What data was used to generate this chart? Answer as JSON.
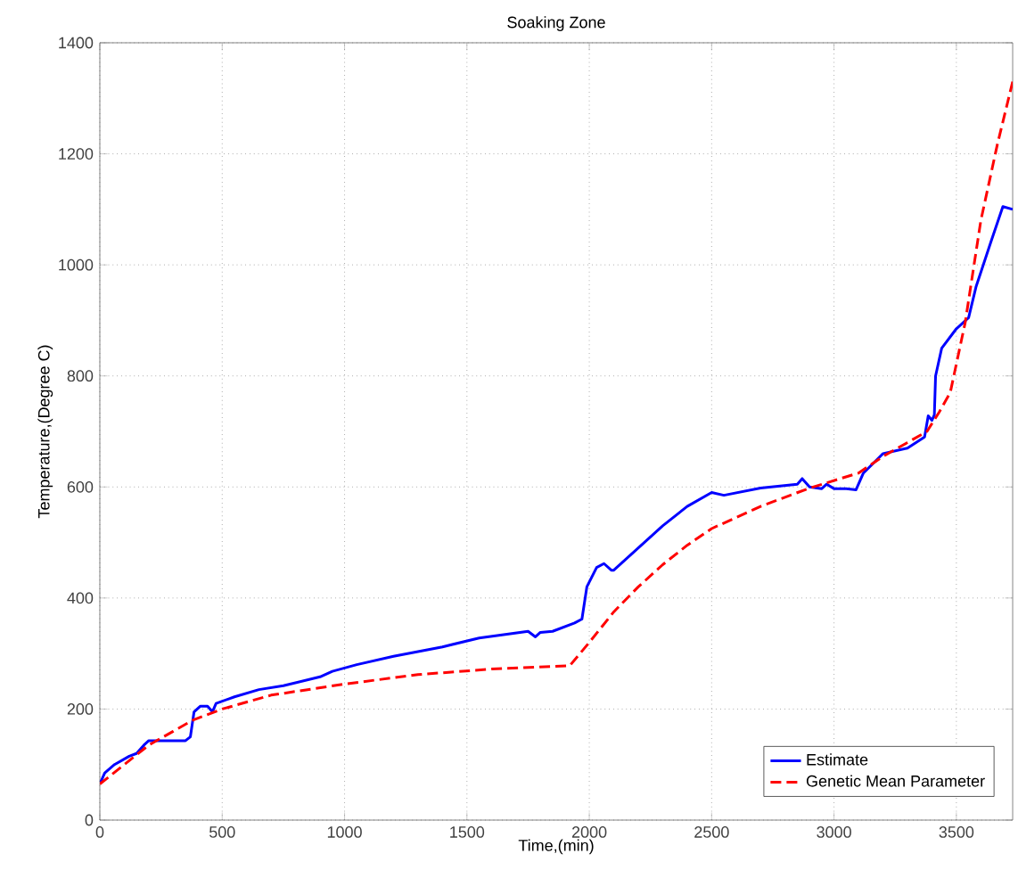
{
  "chart_data": {
    "type": "line",
    "title": "Soaking Zone",
    "xlabel": "Time,(min)",
    "ylabel": "Temperature,(Degree C)",
    "xlim": [
      0,
      3730
    ],
    "ylim": [
      0,
      1400
    ],
    "xticks": [
      0,
      500,
      1000,
      1500,
      2000,
      2500,
      3000,
      3500
    ],
    "yticks": [
      0,
      200,
      400,
      600,
      800,
      1000,
      1200,
      1400
    ],
    "grid": true,
    "legend": "bottom right",
    "series": [
      {
        "name": "Estimate",
        "color": "#0000ff",
        "line_style": "solid",
        "x": [
          0,
          20,
          60,
          120,
          150,
          180,
          200,
          250,
          300,
          350,
          370,
          385,
          410,
          440,
          460,
          475,
          550,
          650,
          750,
          900,
          950,
          1050,
          1200,
          1400,
          1550,
          1750,
          1780,
          1800,
          1850,
          1940,
          1970,
          1990,
          2030,
          2060,
          2090,
          2100,
          2200,
          2300,
          2400,
          2500,
          2550,
          2700,
          2850,
          2870,
          2900,
          2950,
          2970,
          3000,
          3050,
          3090,
          3120,
          3200,
          3300,
          3370,
          3385,
          3400,
          3410,
          3415,
          3440,
          3500,
          3550,
          3580,
          3640,
          3690,
          3730
        ],
        "values": [
          65,
          85,
          100,
          115,
          120,
          135,
          143,
          143,
          143,
          143,
          150,
          195,
          205,
          205,
          195,
          210,
          222,
          235,
          242,
          258,
          268,
          280,
          295,
          312,
          328,
          340,
          330,
          338,
          340,
          355,
          362,
          420,
          455,
          462,
          450,
          450,
          490,
          530,
          565,
          590,
          585,
          598,
          605,
          615,
          600,
          597,
          605,
          597,
          597,
          595,
          625,
          660,
          670,
          690,
          728,
          720,
          730,
          800,
          850,
          885,
          905,
          960,
          1040,
          1105,
          1100
        ]
      },
      {
        "name": "Genetic Mean Parameter",
        "color": "#ff0000",
        "line_style": "dashed",
        "x": [
          0,
          100,
          200,
          300,
          380,
          500,
          700,
          1000,
          1300,
          1600,
          1920,
          2000,
          2100,
          2200,
          2300,
          2400,
          2500,
          2700,
          2900,
          3100,
          3200,
          3300,
          3380,
          3430,
          3475,
          3536,
          3600,
          3667,
          3730
        ],
        "values": [
          65,
          100,
          135,
          160,
          180,
          200,
          225,
          245,
          262,
          272,
          278,
          320,
          375,
          420,
          460,
          495,
          525,
          565,
          598,
          625,
          655,
          680,
          700,
          735,
          770,
          896,
          1080,
          1216,
          1330
        ]
      }
    ]
  }
}
